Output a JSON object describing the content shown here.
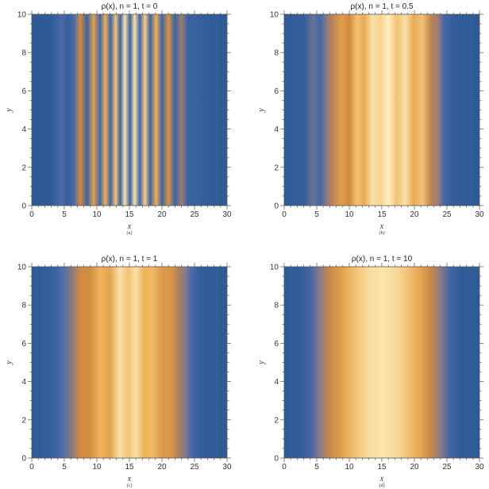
{
  "chart_data": [
    {
      "type": "heatmap",
      "panel": "(a)",
      "title": "ρ(x), n = 1, t = 0",
      "xlabel": "x",
      "ylabel": "y",
      "xlim": [
        0,
        30
      ],
      "ylim": [
        0,
        10
      ],
      "xticks": [
        0,
        5,
        10,
        15,
        20,
        25,
        30
      ],
      "yticks": [
        0,
        2,
        4,
        6,
        8,
        10
      ],
      "colormap": [
        "#2e5b96",
        "#4a6aa8",
        "#8a7a86",
        "#d08a3f",
        "#f0b35a",
        "#fdf0c0"
      ],
      "x": [
        0,
        3.0,
        4.5,
        5.5,
        6.5,
        7.5,
        8.5,
        9.5,
        10.5,
        11.3,
        12.1,
        12.9,
        13.6,
        14.3,
        15.1,
        15.8,
        16.6,
        17.4,
        18.2,
        19.1,
        20.0,
        21.0,
        22.0,
        23.0,
        24.0,
        25.0,
        27.0,
        30.0
      ],
      "values": [
        0.0,
        0.0,
        0.2,
        0.05,
        0.22,
        0.6,
        0.1,
        0.7,
        0.15,
        0.78,
        0.15,
        0.85,
        0.1,
        0.95,
        0.1,
        0.95,
        0.15,
        0.88,
        0.12,
        0.78,
        0.12,
        0.65,
        0.1,
        0.45,
        0.08,
        0.08,
        0.02,
        0.0
      ]
    },
    {
      "type": "heatmap",
      "panel": "(b)",
      "title": "ρ(x), n = 1, t = 0.5",
      "xlabel": "x",
      "ylabel": "y",
      "xlim": [
        0,
        30
      ],
      "ylim": [
        0,
        10
      ],
      "xticks": [
        0,
        5,
        10,
        15,
        20,
        25,
        30
      ],
      "yticks": [
        0,
        2,
        4,
        6,
        8,
        10
      ],
      "colormap": [
        "#2e5b96",
        "#4a6aa8",
        "#8a7a86",
        "#d08a3f",
        "#f0b35a",
        "#fdf0c0"
      ],
      "x": [
        0,
        3.0,
        4.5,
        5.5,
        6.5,
        7.5,
        8.8,
        10.0,
        11.2,
        12.3,
        13.5,
        14.7,
        16.0,
        17.3,
        18.6,
        19.9,
        21.2,
        22.5,
        23.6,
        24.6,
        26.0,
        30.0
      ],
      "values": [
        0.0,
        0.05,
        0.3,
        0.15,
        0.4,
        0.55,
        0.7,
        0.6,
        0.85,
        0.75,
        0.95,
        0.9,
        1.0,
        0.85,
        0.95,
        0.75,
        0.85,
        0.55,
        0.45,
        0.15,
        0.03,
        0.0
      ]
    },
    {
      "type": "heatmap",
      "panel": "(c)",
      "title": "ρ(x), n = 1, t = 1",
      "xlabel": "x",
      "ylabel": "y",
      "xlim": [
        0,
        30
      ],
      "ylim": [
        0,
        10
      ],
      "xticks": [
        0,
        5,
        10,
        15,
        20,
        25,
        30
      ],
      "yticks": [
        0,
        2,
        4,
        6,
        8,
        10
      ],
      "colormap": [
        "#2e5b96",
        "#4a6aa8",
        "#8a7a86",
        "#d08a3f",
        "#f0b35a",
        "#fdf0c0"
      ],
      "x": [
        0,
        3.0,
        4.5,
        5.5,
        6.5,
        7.5,
        9.0,
        10.5,
        12.0,
        13.5,
        14.8,
        16.0,
        17.2,
        18.5,
        20.0,
        21.5,
        22.5,
        23.5,
        24.5,
        26.0,
        30.0
      ],
      "values": [
        0.0,
        0.05,
        0.2,
        0.3,
        0.45,
        0.6,
        0.62,
        0.8,
        0.72,
        0.95,
        0.85,
        0.95,
        0.8,
        0.82,
        0.68,
        0.65,
        0.5,
        0.4,
        0.2,
        0.03,
        0.0
      ]
    },
    {
      "type": "heatmap",
      "panel": "(d)",
      "title": "ρ(x), n = 1, t = 10",
      "xlabel": "x",
      "ylabel": "y",
      "xlim": [
        0,
        30
      ],
      "ylim": [
        0,
        10
      ],
      "xticks": [
        0,
        5,
        10,
        15,
        20,
        25,
        30
      ],
      "yticks": [
        0,
        2,
        4,
        6,
        8,
        10
      ],
      "colormap": [
        "#2e5b96",
        "#4a6aa8",
        "#8a7a86",
        "#d08a3f",
        "#f0b35a",
        "#fdf0c0"
      ],
      "x": [
        0,
        2.5,
        4.0,
        5.5,
        7.0,
        9.0,
        11.0,
        13.0,
        15.0,
        17.0,
        19.0,
        21.0,
        22.5,
        24.0,
        25.5,
        27.0,
        30.0
      ],
      "values": [
        0.0,
        0.02,
        0.15,
        0.4,
        0.58,
        0.72,
        0.85,
        0.93,
        0.96,
        0.93,
        0.85,
        0.72,
        0.58,
        0.4,
        0.15,
        0.02,
        0.0
      ]
    }
  ]
}
